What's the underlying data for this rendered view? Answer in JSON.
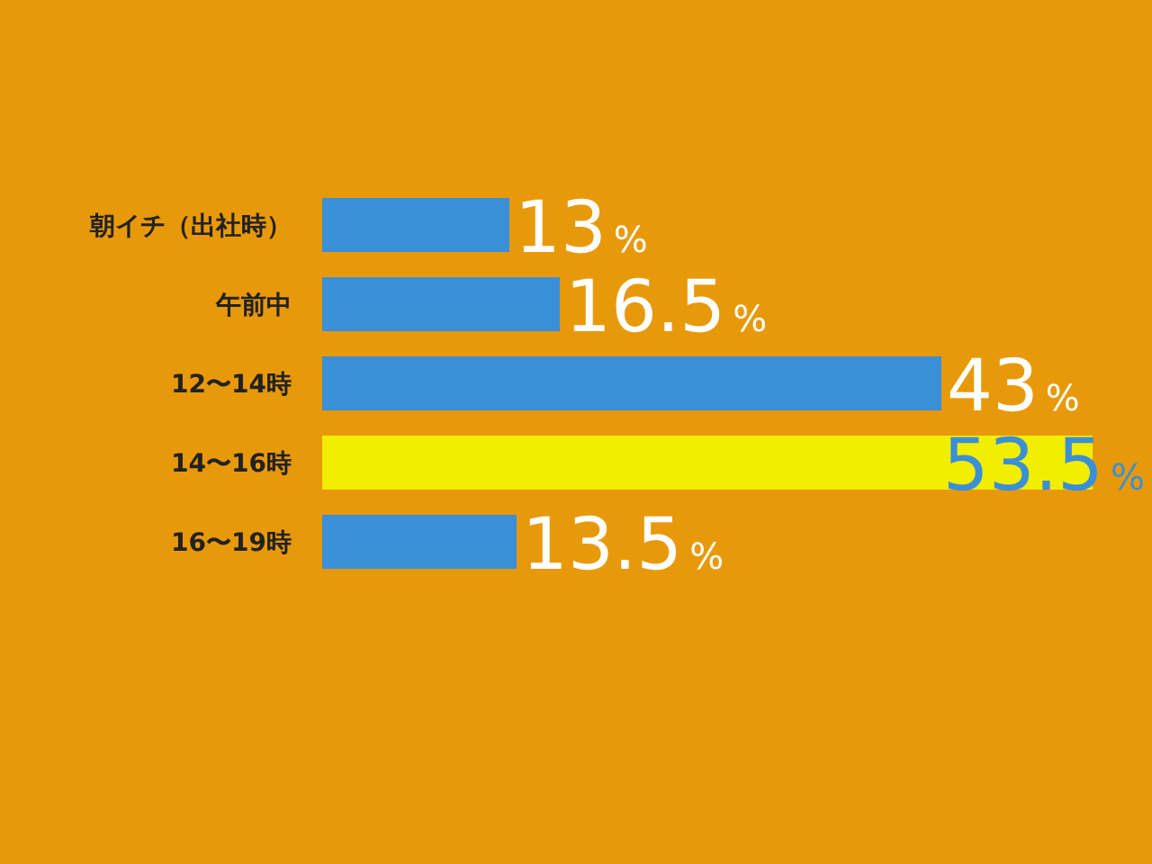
{
  "chart_data": {
    "type": "bar",
    "orientation": "horizontal",
    "categories": [
      "朝イチ（出社時）",
      "午前中",
      "12〜14時",
      "14〜16時",
      "16〜19時"
    ],
    "values": [
      13,
      16.5,
      43,
      53.5,
      13.5
    ],
    "colors": [
      "#3a8fd6",
      "#3a8fd6",
      "#3a8fd6",
      "#f2ee00",
      "#3a8fd6"
    ],
    "value_labels": [
      "13%",
      "16.5%",
      "43%",
      "53.5%",
      "13.5%"
    ]
  }
}
